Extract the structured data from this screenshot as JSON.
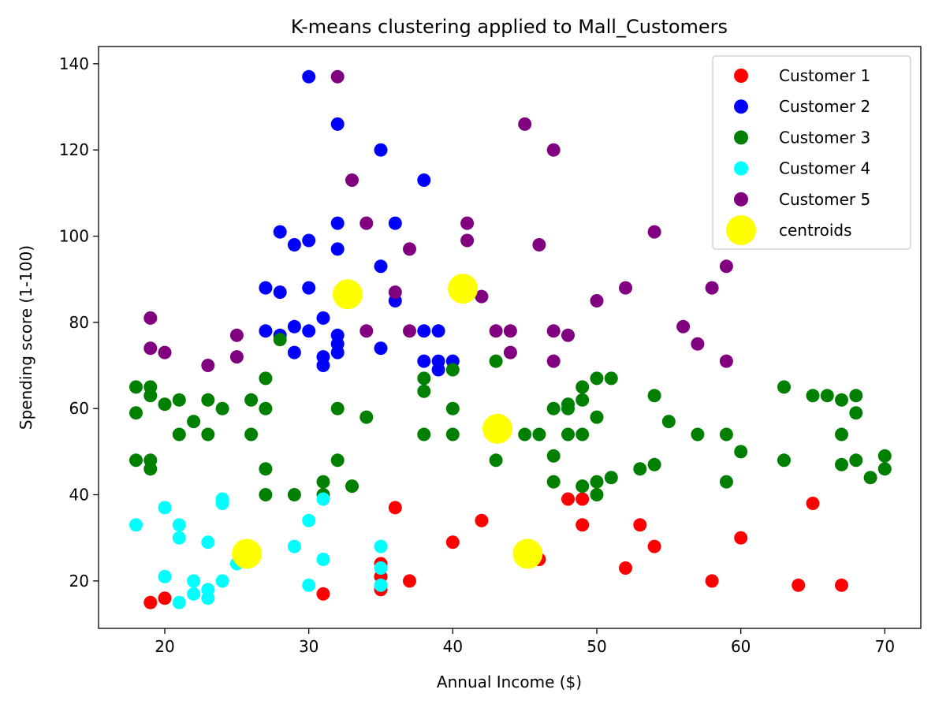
{
  "chart_data": {
    "type": "scatter",
    "title": "K-means clustering applied to Mall_Customers",
    "xlabel": "Annual Income ($)",
    "ylabel": "Spending score (1-100)",
    "xlim": [
      15.4,
      72.5
    ],
    "ylim": [
      9,
      144
    ],
    "xticks": [
      20,
      30,
      40,
      50,
      60,
      70
    ],
    "yticks": [
      20,
      40,
      60,
      80,
      100,
      120,
      140
    ],
    "grid": false,
    "legend_position": "top-right",
    "series": [
      {
        "name": "Customer 1",
        "color": "#ff0000",
        "points": [
          [
            19,
            15
          ],
          [
            20,
            16
          ],
          [
            31,
            17
          ],
          [
            35,
            18
          ],
          [
            35,
            21
          ],
          [
            35,
            24
          ],
          [
            36,
            37
          ],
          [
            37,
            20
          ],
          [
            40,
            29
          ],
          [
            42,
            34
          ],
          [
            46,
            25
          ],
          [
            48,
            39
          ],
          [
            49,
            39
          ],
          [
            49,
            33
          ],
          [
            52,
            23
          ],
          [
            53,
            33
          ],
          [
            54,
            28
          ],
          [
            58,
            20
          ],
          [
            60,
            30
          ],
          [
            64,
            19
          ],
          [
            65,
            38
          ],
          [
            67,
            19
          ]
        ]
      },
      {
        "name": "Customer 2",
        "color": "#0000ff",
        "points": [
          [
            30,
            137
          ],
          [
            32,
            126
          ],
          [
            35,
            120
          ],
          [
            38,
            113
          ],
          [
            32,
            103
          ],
          [
            36,
            103
          ],
          [
            28,
            101
          ],
          [
            29,
            98
          ],
          [
            30,
            99
          ],
          [
            32,
            97
          ],
          [
            35,
            93
          ],
          [
            27,
            88
          ],
          [
            28,
            87
          ],
          [
            30,
            88
          ],
          [
            36,
            85
          ],
          [
            31,
            81
          ],
          [
            27,
            78
          ],
          [
            28,
            77
          ],
          [
            29,
            79
          ],
          [
            30,
            78
          ],
          [
            32,
            77
          ],
          [
            32,
            75
          ],
          [
            32,
            73
          ],
          [
            29,
            73
          ],
          [
            31,
            72
          ],
          [
            31,
            70
          ],
          [
            35,
            74
          ],
          [
            38,
            78
          ],
          [
            39,
            78
          ],
          [
            38,
            71
          ],
          [
            39,
            71
          ],
          [
            39,
            69
          ],
          [
            40,
            71
          ]
        ]
      },
      {
        "name": "Customer 3",
        "color": "#008000",
        "points": [
          [
            18,
            65
          ],
          [
            18,
            59
          ],
          [
            18,
            48
          ],
          [
            19,
            65
          ],
          [
            19,
            63
          ],
          [
            19,
            48
          ],
          [
            19,
            46
          ],
          [
            20,
            61
          ],
          [
            21,
            62
          ],
          [
            21,
            54
          ],
          [
            22,
            57
          ],
          [
            23,
            62
          ],
          [
            23,
            54
          ],
          [
            24,
            60
          ],
          [
            26,
            62
          ],
          [
            26,
            54
          ],
          [
            27,
            67
          ],
          [
            27,
            60
          ],
          [
            27,
            46
          ],
          [
            27,
            40
          ],
          [
            28,
            76
          ],
          [
            29,
            40
          ],
          [
            31,
            43
          ],
          [
            31,
            40
          ],
          [
            32,
            60
          ],
          [
            32,
            48
          ],
          [
            33,
            42
          ],
          [
            34,
            58
          ],
          [
            38,
            67
          ],
          [
            38,
            64
          ],
          [
            38,
            54
          ],
          [
            40,
            69
          ],
          [
            40,
            60
          ],
          [
            40,
            54
          ],
          [
            43,
            71
          ],
          [
            43,
            48
          ],
          [
            45,
            54
          ],
          [
            46,
            54
          ],
          [
            47,
            60
          ],
          [
            47,
            49
          ],
          [
            47,
            43
          ],
          [
            48,
            61
          ],
          [
            48,
            60
          ],
          [
            48,
            54
          ],
          [
            49,
            65
          ],
          [
            49,
            62
          ],
          [
            49,
            54
          ],
          [
            49,
            42
          ],
          [
            50,
            67
          ],
          [
            50,
            58
          ],
          [
            50,
            43
          ],
          [
            50,
            40
          ],
          [
            51,
            67
          ],
          [
            51,
            44
          ],
          [
            53,
            46
          ],
          [
            54,
            63
          ],
          [
            54,
            47
          ],
          [
            55,
            57
          ],
          [
            57,
            54
          ],
          [
            59,
            54
          ],
          [
            59,
            43
          ],
          [
            60,
            50
          ],
          [
            63,
            65
          ],
          [
            63,
            48
          ],
          [
            65,
            63
          ],
          [
            66,
            63
          ],
          [
            67,
            62
          ],
          [
            67,
            54
          ],
          [
            67,
            47
          ],
          [
            68,
            63
          ],
          [
            68,
            59
          ],
          [
            68,
            48
          ],
          [
            69,
            44
          ],
          [
            70,
            49
          ],
          [
            70,
            46
          ]
        ]
      },
      {
        "name": "Customer 4",
        "color": "#00ffff",
        "points": [
          [
            18,
            33
          ],
          [
            20,
            37
          ],
          [
            20,
            21
          ],
          [
            21,
            33
          ],
          [
            21,
            30
          ],
          [
            21,
            15
          ],
          [
            22,
            20
          ],
          [
            22,
            17
          ],
          [
            23,
            29
          ],
          [
            23,
            18
          ],
          [
            23,
            16
          ],
          [
            24,
            39
          ],
          [
            24,
            38
          ],
          [
            24,
            20
          ],
          [
            25,
            24
          ],
          [
            29,
            28
          ],
          [
            30,
            34
          ],
          [
            30,
            19
          ],
          [
            31,
            39
          ],
          [
            31,
            25
          ],
          [
            35,
            28
          ],
          [
            35,
            23
          ],
          [
            35,
            19
          ]
        ]
      },
      {
        "name": "Customer 5",
        "color": "#800080",
        "points": [
          [
            32,
            137
          ],
          [
            45,
            126
          ],
          [
            47,
            120
          ],
          [
            33,
            113
          ],
          [
            34,
            103
          ],
          [
            41,
            103
          ],
          [
            41,
            99
          ],
          [
            54,
            101
          ],
          [
            46,
            98
          ],
          [
            37,
            97
          ],
          [
            59,
            93
          ],
          [
            36,
            87
          ],
          [
            52,
            88
          ],
          [
            58,
            88
          ],
          [
            42,
            86
          ],
          [
            50,
            85
          ],
          [
            19,
            81
          ],
          [
            56,
            79
          ],
          [
            34,
            78
          ],
          [
            37,
            78
          ],
          [
            43,
            78
          ],
          [
            44,
            78
          ],
          [
            47,
            78
          ],
          [
            48,
            77
          ],
          [
            25,
            77
          ],
          [
            57,
            75
          ],
          [
            19,
            74
          ],
          [
            20,
            73
          ],
          [
            44,
            73
          ],
          [
            25,
            72
          ],
          [
            47,
            71
          ],
          [
            59,
            71
          ],
          [
            23,
            70
          ]
        ]
      },
      {
        "name": "centroids",
        "color": "#ffff00",
        "points": [
          [
            25.7,
            26.3
          ],
          [
            32.7,
            86.5
          ],
          [
            40.7,
            87.8
          ],
          [
            43.1,
            55.3
          ],
          [
            45.2,
            26.3
          ]
        ]
      }
    ]
  }
}
